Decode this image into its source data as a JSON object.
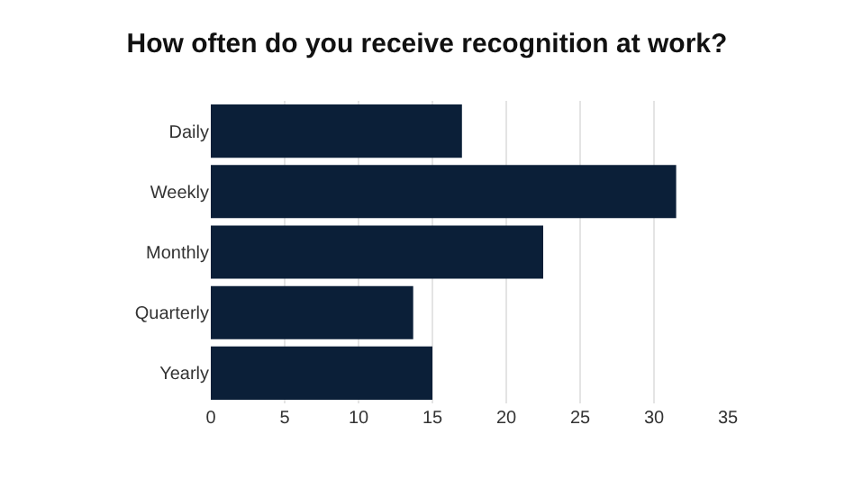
{
  "chart_data": {
    "type": "bar",
    "orientation": "horizontal",
    "title": "How often do you receive recognition at work?",
    "categories": [
      "Daily",
      "Weekly",
      "Monthly",
      "Quarterly",
      "Yearly"
    ],
    "values": [
      17,
      31.5,
      22.5,
      13.7,
      15
    ],
    "color": "#0b1f38",
    "xlim": [
      0,
      35
    ],
    "xticks": [
      0,
      5,
      10,
      15,
      20,
      25,
      30,
      35
    ],
    "grid": "x"
  }
}
